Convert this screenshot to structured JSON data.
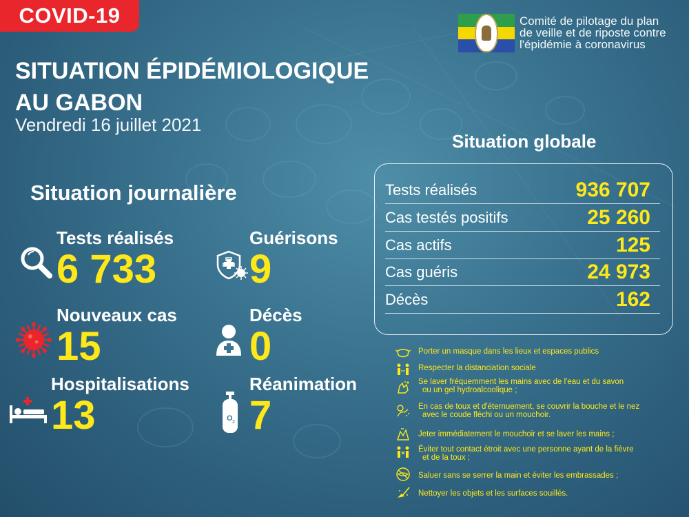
{
  "badge": "COVID-19",
  "header": {
    "title_line1": "SITUATION ÉPIDÉMIOLOGIQUE",
    "title_line2": "AU GABON",
    "date": "Vendredi 16 juillet 2021"
  },
  "committee": {
    "line1": "Comité de pilotage du plan",
    "line2": "de veille et de riposte contre",
    "line3": "l'épidémie à coronavirus",
    "flag_colors": [
      "#2e9e4a",
      "#f5d800",
      "#2a4fa8"
    ]
  },
  "daily": {
    "title": "Situation journalière",
    "tests": {
      "label": "Tests réalisés",
      "value": "6 733",
      "icon": "magnifier-icon"
    },
    "recoveries": {
      "label": "Guérisons",
      "value": "9",
      "icon": "shield-virus-icon"
    },
    "new_cases": {
      "label": "Nouveaux cas",
      "value": "15",
      "icon": "virus-icon"
    },
    "deaths": {
      "label": "Décès",
      "value": "0",
      "icon": "person-icon"
    },
    "hospitalizations": {
      "label": "Hospitalisations",
      "value": "13",
      "icon": "hospital-bed-icon"
    },
    "intensive_care": {
      "label": "Réanimation",
      "value": "7",
      "icon": "oxygen-tank-icon"
    }
  },
  "global": {
    "title": "Situation globale",
    "rows": [
      {
        "label": "Tests réalisés",
        "value": "936 707"
      },
      {
        "label": "Cas testés positifs",
        "value": "25 260"
      },
      {
        "label": "Cas actifs",
        "value": "125"
      },
      {
        "label": "Cas guéris",
        "value": "24 973"
      },
      {
        "label": "Décès",
        "value": "162"
      }
    ]
  },
  "measures": [
    {
      "icon": "mask-icon",
      "line1": "Porter un masque dans les lieux et espaces publics",
      "line2": ""
    },
    {
      "icon": "distance-icon",
      "line1": "Respecter la distanciation sociale",
      "line2": ""
    },
    {
      "icon": "hand-wash-icon",
      "line1": "Se laver fréquemment les mains avec de l'eau et du savon",
      "line2": "ou un gel hydroalcoolique ;"
    },
    {
      "icon": "cough-icon",
      "line1": "En cas de toux et d'éternuement, se couvrir la bouche et le nez",
      "line2": "avec le coude fléchi ou un mouchoir."
    },
    {
      "icon": "tissue-icon",
      "line1": "Jeter immédiatement le mouchoir et se laver les mains ;",
      "line2": ""
    },
    {
      "icon": "avoid-contact-icon",
      "line1": "Éviter tout contact étroit avec une personne ayant de la fièvre",
      "line2": "et de la toux ;"
    },
    {
      "icon": "no-handshake-icon",
      "line1": "Saluer sans se serrer la main et éviter les embrassades ;",
      "line2": ""
    },
    {
      "icon": "cleaning-icon",
      "line1": "Nettoyer les objets et les surfaces souillés.",
      "line2": ""
    }
  ],
  "colors": {
    "accent_yellow": "#ffe81a",
    "badge_red": "#e9262b",
    "background": "#3b7591"
  }
}
